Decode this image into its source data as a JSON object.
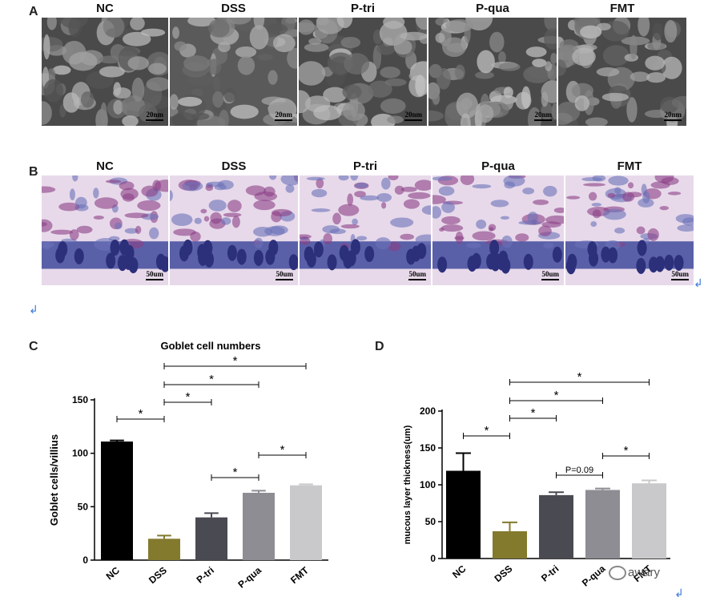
{
  "panels": {
    "A": {
      "letter": "A",
      "labels": [
        "NC",
        "DSS",
        "P-tri",
        "P-qua",
        "FMT"
      ],
      "scale": "20nm"
    },
    "B": {
      "letter": "B",
      "labels": [
        "NC",
        "DSS",
        "P-tri",
        "P-qua",
        "FMT"
      ],
      "scale": "50um"
    },
    "C": {
      "letter": "C"
    },
    "D": {
      "letter": "D"
    }
  },
  "return_mark": "↲",
  "watermark": "awary",
  "chart_data": [
    {
      "type": "bar",
      "title": "Goblet cell numbers",
      "ylabel": "Goblet cells/villius",
      "categories": [
        "NC",
        "DSS",
        "P-tri",
        "P-qua",
        "FMT"
      ],
      "values": [
        111,
        20,
        40,
        63,
        70
      ],
      "errors": [
        1,
        3,
        4,
        2,
        1
      ],
      "colors": [
        "#000000",
        "#837a2e",
        "#4a4a52",
        "#8d8d93",
        "#c9c9cc"
      ],
      "ylim": [
        0,
        150
      ],
      "yticks": [
        0,
        50,
        100,
        150
      ],
      "sig": [
        {
          "from": 0,
          "to": 1,
          "label": "*"
        },
        {
          "from": 1,
          "to": 2,
          "label": "*"
        },
        {
          "from": 1,
          "to": 3,
          "label": "*"
        },
        {
          "from": 1,
          "to": 4,
          "label": "*"
        },
        {
          "from": 2,
          "to": 3,
          "label": "*"
        },
        {
          "from": 3,
          "to": 4,
          "label": "*"
        }
      ]
    },
    {
      "type": "bar",
      "title": "",
      "ylabel": "mucous layer thickness(um)",
      "categories": [
        "NC",
        "DSS",
        "P-tri",
        "P-qua",
        "FMT"
      ],
      "values": [
        119,
        37,
        86,
        93,
        102
      ],
      "errors": [
        24,
        12,
        4,
        2,
        4
      ],
      "colors": [
        "#000000",
        "#837a2e",
        "#4a4a52",
        "#8d8d93",
        "#c9c9cc"
      ],
      "ylim": [
        0,
        200
      ],
      "yticks": [
        0,
        50,
        100,
        150,
        200
      ],
      "sig": [
        {
          "from": 0,
          "to": 1,
          "label": "*"
        },
        {
          "from": 1,
          "to": 2,
          "label": "*"
        },
        {
          "from": 1,
          "to": 3,
          "label": "*"
        },
        {
          "from": 1,
          "to": 4,
          "label": "*"
        },
        {
          "from": 2,
          "to": 3,
          "label": "P=0.09"
        },
        {
          "from": 3,
          "to": 4,
          "label": "*"
        }
      ]
    }
  ]
}
